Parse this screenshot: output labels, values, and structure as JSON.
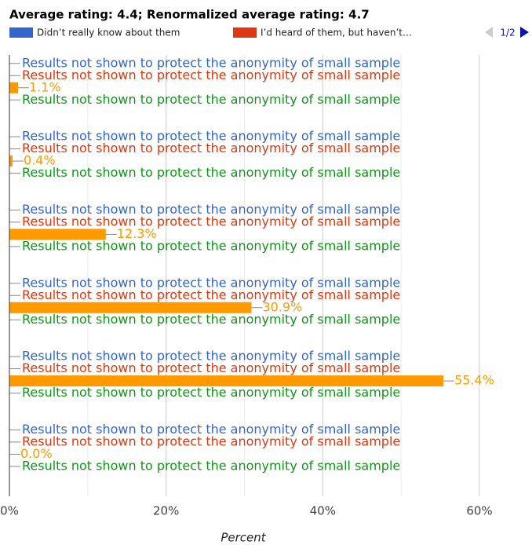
{
  "chart_data": {
    "type": "hbar",
    "title": "Average rating: 4.4; Renormalized average rating: 4.7",
    "legend_page": "1/2",
    "categories": [
      null,
      null,
      null,
      null,
      null,
      null
    ],
    "series": [
      {
        "name": "Didn’t really know about them",
        "color": "#3366cc",
        "values": [
          null,
          null,
          null,
          null,
          null,
          null
        ],
        "note": "Results not shown to protect the anonymity of small sample"
      },
      {
        "name": "I’d heard of them, but haven’t…",
        "color": "#dc3912",
        "values": [
          null,
          null,
          null,
          null,
          null,
          null
        ],
        "note": "Results not shown to protect the anonymity of small sample"
      },
      {
        "color": "#ff9900",
        "values": [
          1.1,
          0.4,
          12.3,
          30.9,
          55.4,
          0.0
        ],
        "value_labels": [
          "1.1%",
          "0.4%",
          "12.3%",
          "30.9%",
          "55.4%",
          "0.0%"
        ]
      },
      {
        "color": "#109618",
        "values": [
          null,
          null,
          null,
          null,
          null,
          null
        ],
        "note": "Results not shown to protect the anonymity of small sample"
      }
    ],
    "xlabel": "Percent",
    "xlim": [
      0,
      60
    ],
    "xticks": [
      {
        "value": 0,
        "label": "0%"
      },
      {
        "value": 20,
        "label": "20%"
      },
      {
        "value": 40,
        "label": "40%"
      },
      {
        "value": 60,
        "label": "60%"
      }
    ],
    "x_minor_grid": [
      10,
      30,
      50
    ],
    "grid": true
  }
}
